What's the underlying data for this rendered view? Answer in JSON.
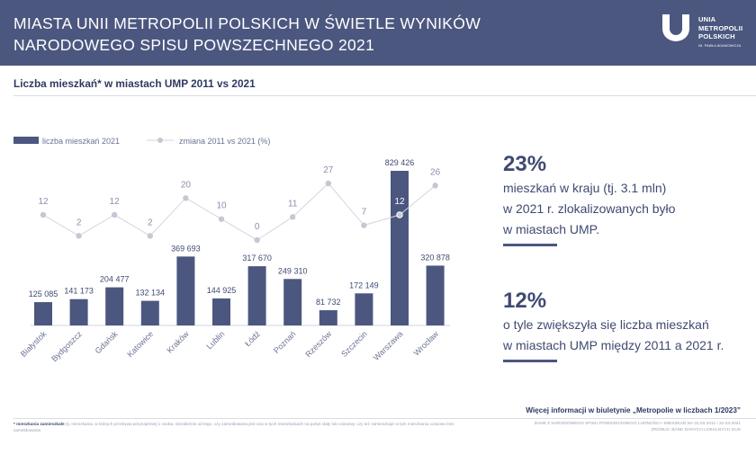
{
  "header": {
    "title_line1": "MIASTA UNII METROPOLII POLSKICH W ŚWIETLE WYNIKÓW",
    "title_line2": "NARODOWEGO SPISU POWSZECHNEGO 2021"
  },
  "logo": {
    "line1": "UNIA",
    "line2": "METROPOLII",
    "line3": "POLSKICH",
    "sub": "IM. PAWŁA ADAMOWICZA"
  },
  "section_title": "Liczba mieszkań* w miastach UMP 2011 vs 2021",
  "chart_data": {
    "type": "bar",
    "title": "Liczba mieszkań* w miastach UMP 2011 vs 2021",
    "categories": [
      "Białystok",
      "Bydgoszcz",
      "Gdańsk",
      "Katowice",
      "Kraków",
      "Lublin",
      "Łódź",
      "Poznań",
      "Rzeszów",
      "Szczecin",
      "Warszawa",
      "Wrocław"
    ],
    "series": [
      {
        "name": "liczba mieszkań 2021",
        "type": "bar",
        "values": [
          125085,
          141173,
          204477,
          132134,
          369693,
          144925,
          317670,
          249310,
          81732,
          172149,
          829426,
          320878
        ],
        "labels": [
          "125 085",
          "141 173",
          "204 477",
          "132 134",
          "369 693",
          "144 925",
          "317 670",
          "249 310",
          "81 732",
          "172 149",
          "829 426",
          "320 878"
        ]
      },
      {
        "name": "zmiana 2011 vs 2021 (%)",
        "type": "line",
        "values": [
          12,
          2,
          12,
          2,
          20,
          10,
          0,
          11,
          27,
          7,
          12,
          26
        ],
        "labels": [
          "12",
          "2",
          "12",
          "2",
          "20",
          "10",
          "0",
          "11",
          "27",
          "7",
          "12",
          "26"
        ]
      }
    ],
    "legend_position": "top-left",
    "colors": {
      "bar": "#4c5780",
      "line": "#d3d6e0",
      "point": "#c5c8d3"
    }
  },
  "stats": [
    {
      "pct": "23%",
      "lines": [
        "mieszkań w kraju (tj. 3.1 mln)",
        "w 2021 r. zlokalizowanych było",
        "w miastach UMP."
      ]
    },
    {
      "pct": "12%",
      "lines": [
        "o tyle zwiększyła się liczba mieszkań",
        "w miastach UMP między 2011 a 2021 r."
      ]
    }
  ],
  "footer": {
    "more_info": "Więcej informacji w biuletynie „Metropolie w liczbach 1/2023”",
    "footnote_bold": "* mieszkania zamieszkałe",
    "footnote_text": " (tj. mieszkania, w których przebywa przynajmniej 1 osoba, niezależnie od tego, czy zameldowana jest ona w tych mieszkaniach na pobyt stały lub czasowy, czy też zamieszkuje w tym mieszkaniu czasowo bez zameldowania",
    "source_line1": "DANE Z NARODOWEGO SPISU POWSZECHNEGO LUDNOŚCI I MIESZKAŃ NA 31.03.2011 I 31.03.2021",
    "source_line2": "ŹRÓDŁO: BANK DANYCH LOKALNYCH GUS"
  }
}
